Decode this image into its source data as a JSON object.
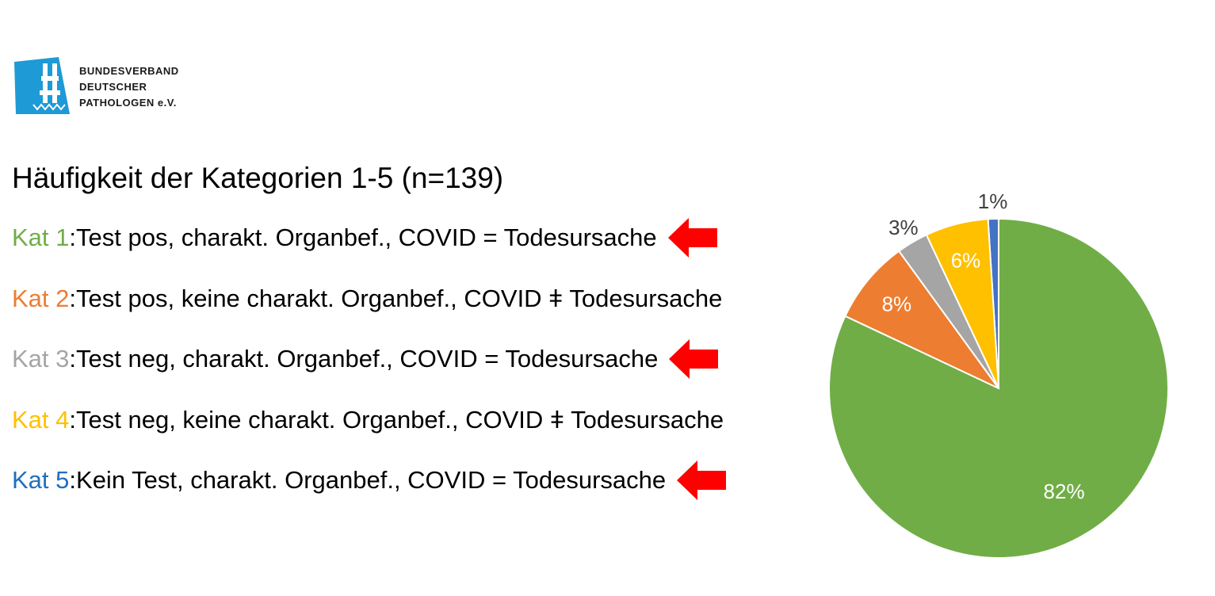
{
  "logo": {
    "lines": [
      "BUNDESVERBAND",
      "DEUTSCHER",
      "PATHOLOGEN e.V."
    ],
    "brand_color": "#1e9ad6"
  },
  "heading": "Häufigkeit der Kategorien 1-5 (n=139)",
  "categories": [
    {
      "label": "Kat 1",
      "sep": ": ",
      "desc": "Test pos, charakt. Organbef., COVID = Todesursache",
      "color": "#70ad47",
      "arrow": true
    },
    {
      "label": "Kat 2",
      "sep": ": ",
      "desc": "Test pos, keine charakt. Organbef., COVID ǂ Todesursache",
      "color": "#ed7d31",
      "arrow": false
    },
    {
      "label": "Kat 3",
      "sep": ": ",
      "desc": "Test neg, charakt. Organbef., COVID = Todesursache",
      "color": "#a5a5a5",
      "arrow": true
    },
    {
      "label": "Kat 4",
      "sep": ": ",
      "desc": "Test neg, keine charakt. Organbef., COVID ǂ Todesursache",
      "color": "#ffc000",
      "arrow": false
    },
    {
      "label": "Kat 5",
      "sep": ": ",
      "desc": "Kein Test, charakt. Organbef., COVID = Todesursache",
      "color": "#1f6fbf",
      "arrow": true
    }
  ],
  "arrow_color": "#ff0000",
  "chart_data": {
    "type": "pie",
    "categories": [
      "Kat 1",
      "Kat 2",
      "Kat 3",
      "Kat 4",
      "Kat 5"
    ],
    "values": [
      82,
      8,
      3,
      6,
      1
    ],
    "labels": [
      "82%",
      "8%",
      "3%",
      "6%",
      "1%"
    ],
    "colors": [
      "#70ad47",
      "#ed7d31",
      "#a5a5a5",
      "#ffc000",
      "#4472c4"
    ],
    "start": "12 o'clock",
    "direction": "clockwise"
  }
}
